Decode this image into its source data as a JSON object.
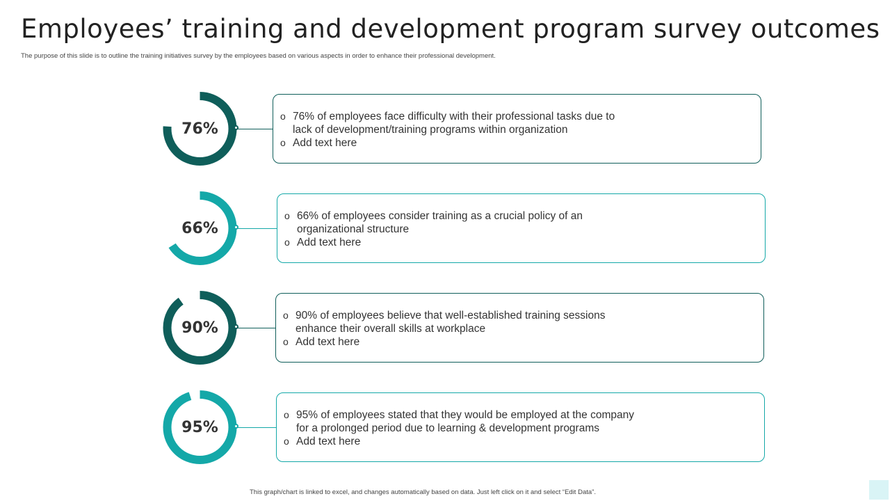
{
  "header": {
    "title": "Employees’ training and development program survey outcomes",
    "subtitle": "The purpose of this slide is to outline the training initiatives survey by the employees based on various aspects in order to enhance their professional development."
  },
  "colors": {
    "dark_teal": "#0f5e5a",
    "light_teal": "#14a8a8"
  },
  "bullet_icon": "circle-bullet-icon",
  "chart_data": {
    "type": "pie",
    "series": [
      {
        "value": 76,
        "label": "76%",
        "color": "#0f5e5a",
        "lines": [
          "76% of employees face difficulty with their professional tasks due to",
          "lack of development/training  programs within organization"
        ],
        "extra": "Add text here"
      },
      {
        "value": 66,
        "label": "66%",
        "color": "#14a8a8",
        "lines": [
          "66% of employees consider training as a crucial policy of an",
          "organizational structure"
        ],
        "extra": "Add text here"
      },
      {
        "value": 90,
        "label": "90%",
        "color": "#0f5e5a",
        "lines": [
          "90% of employees believe that  well-established training sessions",
          "enhance their overall skills at workplace"
        ],
        "extra": "Add text here"
      },
      {
        "value": 95,
        "label": "95%",
        "color": "#14a8a8",
        "lines": [
          "95% of employees stated that they would be employed at the company",
          "for a prolonged period due to learning & development programs"
        ],
        "extra": "Add text here"
      }
    ]
  },
  "footer": {
    "note": "This graph/chart is linked to excel, and changes automatically based on data. Just left click on it and select “Edit Data”."
  }
}
